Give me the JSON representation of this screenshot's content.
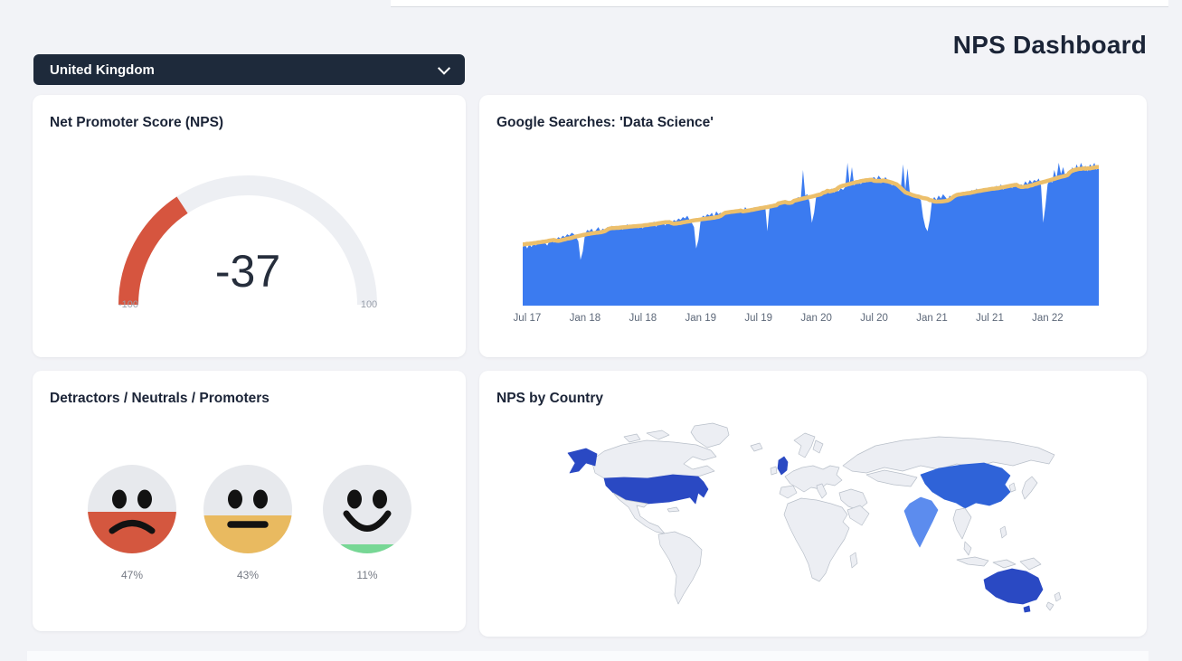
{
  "page": {
    "title": "NPS Dashboard"
  },
  "country_select": {
    "value": "United Kingdom"
  },
  "cards": {
    "gauge": {
      "title": "Net Promoter Score (NPS)"
    },
    "searches": {
      "title": "Google Searches: 'Data Science'"
    },
    "faces": {
      "title": "Detractors / Neutrals / Promoters"
    },
    "map": {
      "title": "NPS by Country"
    }
  },
  "chart_data": [
    {
      "type": "gauge",
      "title": "Net Promoter Score (NPS)",
      "value": -37,
      "value_label": "-37",
      "min": -100,
      "max": 100,
      "min_label": "-100",
      "max_label": "100",
      "fill_color": "#d6553f",
      "track_color": "#edeff3"
    },
    {
      "type": "area",
      "title": "Google Searches: 'Data Science'",
      "x_tick_labels": [
        "Jul 17",
        "Jan 18",
        "Jul 18",
        "Jan 19",
        "Jul 19",
        "Jan 20",
        "Jul 20",
        "Jan 21",
        "Jul 21",
        "Jan 22"
      ],
      "x_tick_indices": [
        2,
        28,
        54,
        80,
        106,
        132,
        158,
        184,
        210,
        236
      ],
      "x_unit": "weeks",
      "ylim": [
        0,
        100
      ],
      "area_color": "#3b7bf0",
      "trend_color": "#ecbf6b",
      "trend": "rolling mean of weekly search interest",
      "values": [
        41,
        43,
        40,
        43,
        41,
        44,
        42,
        45,
        43,
        46,
        44,
        42,
        45,
        47,
        44,
        46,
        48,
        47,
        49,
        48,
        50,
        49,
        51,
        50,
        48,
        45,
        32,
        38,
        50,
        53,
        52,
        54,
        51,
        53,
        55,
        52,
        54,
        53,
        55,
        54,
        56,
        53,
        55,
        54,
        56,
        53,
        55,
        57,
        54,
        56,
        55,
        57,
        54,
        56,
        54,
        57,
        55,
        58,
        56,
        59,
        55,
        58,
        57,
        59,
        56,
        58,
        60,
        58,
        60,
        59,
        61,
        60,
        62,
        61,
        63,
        60,
        58,
        55,
        40,
        46,
        60,
        63,
        62,
        64,
        63,
        65,
        62,
        66,
        64,
        65,
        63,
        66,
        65,
        64,
        66,
        65,
        67,
        66,
        68,
        65,
        69,
        67,
        68,
        66,
        69,
        68,
        67,
        69,
        68,
        70,
        52,
        69,
        71,
        70,
        72,
        71,
        73,
        72,
        74,
        71,
        73,
        72,
        74,
        75,
        76,
        74,
        95,
        77,
        78,
        72,
        58,
        65,
        77,
        79,
        78,
        80,
        79,
        81,
        80,
        82,
        79,
        81,
        80,
        82,
        81,
        83,
        100,
        85,
        97,
        84,
        86,
        88,
        85,
        87,
        86,
        88,
        87,
        89,
        90,
        88,
        91,
        89,
        87,
        90,
        88,
        86,
        84,
        87,
        85,
        83,
        82,
        99,
        81,
        96,
        80,
        78,
        77,
        76,
        75,
        74,
        62,
        55,
        52,
        60,
        73,
        76,
        74,
        77,
        75,
        78,
        76,
        74,
        77,
        75,
        78,
        76,
        79,
        77,
        79,
        78,
        80,
        79,
        81,
        78,
        82,
        80,
        79,
        81,
        80,
        82,
        80,
        82,
        81,
        84,
        82,
        85,
        81,
        84,
        83,
        85,
        82,
        86,
        84,
        83,
        85,
        84,
        87,
        85,
        88,
        86,
        88,
        87,
        89,
        84,
        58,
        70,
        85,
        88,
        86,
        95,
        89,
        100,
        92,
        97,
        90,
        94,
        91,
        97,
        93,
        99,
        95,
        100,
        96,
        98,
        94,
        99,
        97,
        100,
        95,
        98
      ]
    },
    {
      "type": "emoji-summary",
      "title": "Detractors / Neutrals / Promoters",
      "categories": [
        "Detractors",
        "Neutrals",
        "Promoters"
      ],
      "values": [
        47,
        43,
        11
      ],
      "labels": [
        "47%",
        "43%",
        "11%"
      ],
      "colors": [
        "#d4573f",
        "#e9ba60",
        "#77d795"
      ],
      "face_base_color": "#e7e9ed"
    },
    {
      "type": "choropleth",
      "title": "NPS by Country",
      "land_color": "#eceef3",
      "border_color": "#b8bfc9",
      "highlighted": [
        {
          "country": "United States",
          "color": "#2a49c3"
        },
        {
          "country": "United Kingdom",
          "color": "#2a49c3"
        },
        {
          "country": "Australia",
          "color": "#2a49c3"
        },
        {
          "country": "China",
          "color": "#2f63d8"
        },
        {
          "country": "India",
          "color": "#5c8cee"
        }
      ]
    }
  ]
}
